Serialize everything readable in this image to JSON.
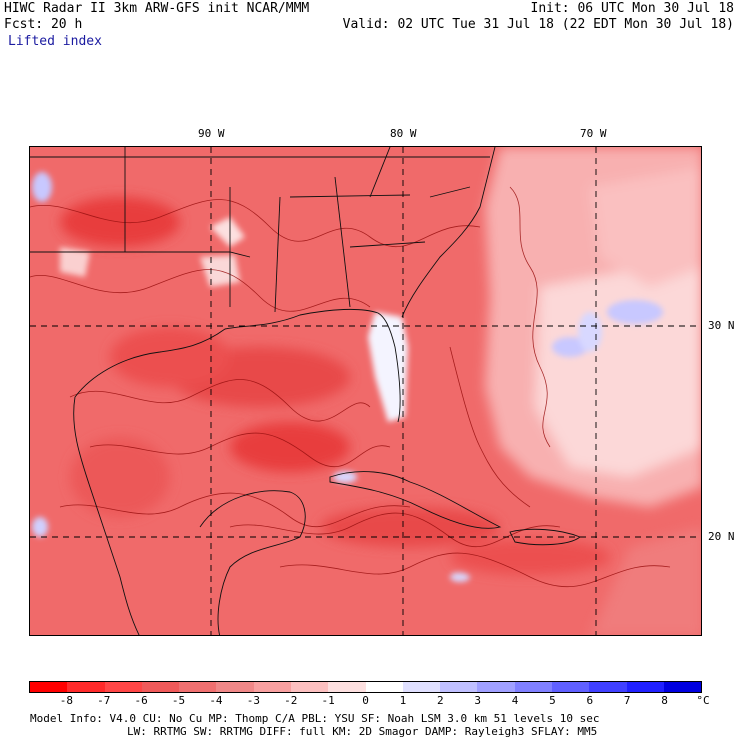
{
  "header": {
    "line1_left": "HIWC Radar II 3km ARW-GFS init   NCAR/MMM",
    "line1_right": "Init: 06 UTC Mon 30 Jul 18",
    "line2_left": "Fcst:   20 h",
    "line2_right": "Valid: 02 UTC Tue 31 Jul 18 (22 EDT Mon 30 Jul 18)",
    "field_name": "Lifted index"
  },
  "map": {
    "lon_labels": [
      "90 W",
      "80 W",
      "70 W"
    ],
    "lat_labels": [
      "30 N",
      "20 N"
    ]
  },
  "colorbar": {
    "ticks": [
      "-8",
      "-7",
      "-6",
      "-5",
      "-4",
      "-3",
      "-2",
      "-1",
      "0",
      "1",
      "2",
      "3",
      "4",
      "5",
      "6",
      "7",
      "8"
    ],
    "unit": "°C",
    "colors": [
      "#ff0000",
      "#ff2a2a",
      "#ff4646",
      "#f05a5a",
      "#f07070",
      "#f08888",
      "#f8a0a0",
      "#fcc0c0",
      "#fde0e0",
      "#ffffff",
      "#e0e0ff",
      "#c0c0ff",
      "#a0a0ff",
      "#8080ff",
      "#6060ff",
      "#4040ff",
      "#2020ff",
      "#0000e0"
    ]
  },
  "footer": {
    "line1": "Model Info: V4.0    CU: No Cu   MP: Thomp C/A   PBL: YSU     SF: Noah LSM    3.0 km  51 levels   10 sec",
    "line2": "LW: RRTMG   SW: RRTMG  DIFF: full   KM: 2D Smagor DAMP: Rayleigh3  SFLAY: MM5"
  }
}
